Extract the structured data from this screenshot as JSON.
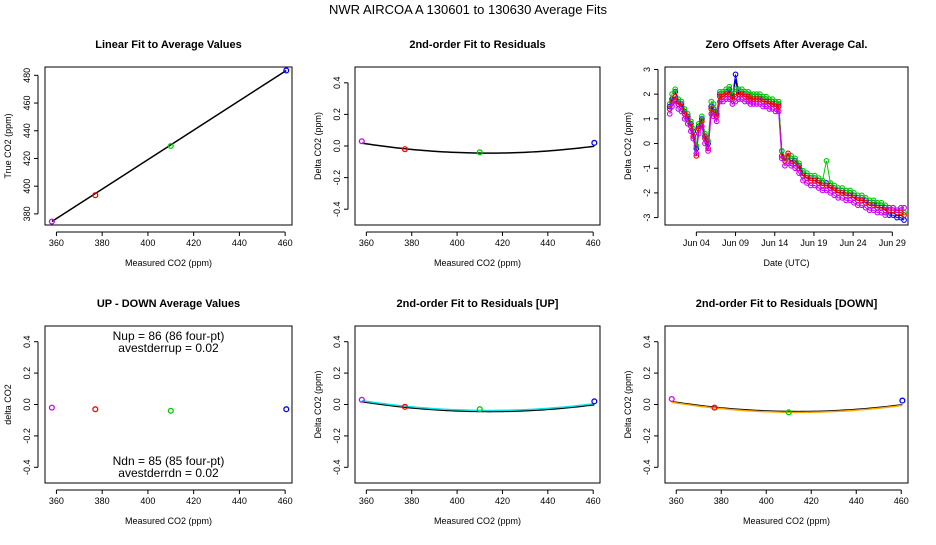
{
  "figure": {
    "title": "NWR   AIRCOA A   130601 to 130630   Average Fits"
  },
  "colors": {
    "purple": "#cc00ff",
    "red": "#ff0000",
    "green": "#00cc00",
    "blue": "#0000ff",
    "black": "#000000",
    "cyan": "#00e5e5",
    "orange": "#ffa500"
  },
  "chart_data": [
    {
      "type": "scatter",
      "title": "Linear Fit to Average Values",
      "xlabel": "Measured CO2 (ppm)",
      "ylabel": "True CO2 (ppm)",
      "xlim": [
        355,
        463
      ],
      "ylim": [
        372,
        486
      ],
      "xticks": [
        "360",
        "380",
        "400",
        "420",
        "440",
        "460"
      ],
      "yticks": [
        "380",
        "400",
        "420",
        "440",
        "460",
        "480"
      ],
      "points": [
        {
          "x": 358,
          "y": 374.5,
          "color": "purple"
        },
        {
          "x": 377,
          "y": 393.5,
          "color": "red"
        },
        {
          "x": 410,
          "y": 429,
          "color": "green"
        },
        {
          "x": 460.5,
          "y": 483.5,
          "color": "blue"
        }
      ],
      "lines": [
        {
          "x": [
            358,
            460.5
          ],
          "y": [
            374.5,
            483.5
          ],
          "color": "black"
        }
      ]
    },
    {
      "type": "scatter",
      "title": "2nd-order Fit to Residuals",
      "xlabel": "Measured CO2 (ppm)",
      "ylabel": "Delta CO2 (ppm)",
      "xlim": [
        355,
        463
      ],
      "ylim": [
        -0.5,
        0.5
      ],
      "xticks": [
        "360",
        "380",
        "400",
        "420",
        "440",
        "460"
      ],
      "yticks": [
        "-0.4",
        "-0.2",
        "0.0",
        "0.2",
        "0.4"
      ],
      "points": [
        {
          "x": 358,
          "y": 0.03,
          "color": "purple"
        },
        {
          "x": 377,
          "y": -0.02,
          "color": "red"
        },
        {
          "x": 410,
          "y": -0.04,
          "color": "green"
        },
        {
          "x": 460.5,
          "y": 0.02,
          "color": "blue"
        }
      ],
      "curves": [
        {
          "a": 2.02e-05,
          "x0": 414,
          "c": -0.045,
          "from": 358,
          "to": 460.5,
          "color": "black"
        }
      ]
    },
    {
      "type": "line",
      "title": "Zero Offsets After Average Cal.",
      "xlabel": "Date (UTC)",
      "ylabel": "Delta CO2 (ppm)",
      "xlim": [
        0,
        31
      ],
      "ylim": [
        -3.3,
        3.1
      ],
      "xtick_values": [
        4,
        9,
        14,
        19,
        24,
        29
      ],
      "xticks": [
        "Jun 04",
        "Jun 09",
        "Jun 14",
        "Jun 19",
        "Jun 24",
        "Jun 29"
      ],
      "yticks": [
        "-3",
        "-2",
        "-1",
        "0",
        "1",
        "2",
        "3"
      ],
      "series_x": [
        0.6,
        0.9,
        1.3,
        1.7,
        2.1,
        2.5,
        2.9,
        3.3,
        3.6,
        4.0,
        4.3,
        4.7,
        5.1,
        5.5,
        5.9,
        6.2,
        6.6,
        7.0,
        7.4,
        7.8,
        8.2,
        8.6,
        9.0,
        9.4,
        9.8,
        10.2,
        10.6,
        10.9,
        11.3,
        11.7,
        12.1,
        12.5,
        12.9,
        13.3,
        13.7,
        14.1,
        14.5,
        14.9,
        15.3,
        15.7,
        16.1,
        16.6,
        17.1,
        17.6,
        18.1,
        18.6,
        19.1,
        19.6,
        20.1,
        20.6,
        21.1,
        21.6,
        22.1,
        22.6,
        23.1,
        23.6,
        24.1,
        24.6,
        25.1,
        25.6,
        26.1,
        26.6,
        27.1,
        27.6,
        28.1,
        28.6,
        29.1,
        29.6,
        30.1,
        30.5
      ],
      "series": [
        {
          "name": "black",
          "color": "black",
          "values": [
            1.4,
            1.7,
            1.9,
            1.6,
            1.5,
            1.2,
            1.0,
            0.7,
            0.4,
            -0.3,
            0.6,
            0.9,
            0.2,
            -0.1,
            1.4,
            1.3,
            1.1,
            1.9,
            1.9,
            2.0,
            2.1,
            1.8,
            2.6,
            2.0,
            2.0,
            1.9,
            1.9,
            1.8,
            1.8,
            1.8,
            1.8,
            1.7,
            1.7,
            1.6,
            1.6,
            1.5,
            1.5,
            -0.4,
            -0.7,
            -0.6,
            -0.7,
            -0.8,
            -1.0,
            -1.3,
            -1.4,
            -1.5,
            -1.5,
            -1.6,
            -1.7,
            -1.7,
            -1.8,
            -1.9,
            -2.0,
            -2.0,
            -2.1,
            -2.1,
            -2.2,
            -2.3,
            -2.3,
            -2.4,
            -2.5,
            -2.5,
            -2.6,
            -2.6,
            -2.7,
            -2.8,
            -2.8,
            -2.9,
            -2.9,
            -3.0
          ]
        },
        {
          "name": "blue",
          "color": "blue",
          "values": [
            1.5,
            1.8,
            2.1,
            1.7,
            1.6,
            1.3,
            1.1,
            0.8,
            0.5,
            -0.2,
            0.7,
            1.0,
            0.3,
            0.0,
            1.5,
            1.4,
            1.2,
            2.0,
            2.0,
            2.1,
            2.2,
            1.9,
            2.8,
            2.1,
            2.1,
            2.0,
            2.0,
            1.9,
            1.9,
            1.9,
            1.9,
            1.8,
            1.8,
            1.7,
            1.7,
            1.6,
            1.6,
            -0.3,
            -0.6,
            -0.5,
            -0.6,
            -0.7,
            -0.9,
            -1.2,
            -1.3,
            -1.4,
            -1.4,
            -1.5,
            -1.6,
            -1.6,
            -1.7,
            -1.8,
            -1.9,
            -1.9,
            -2.0,
            -2.0,
            -2.1,
            -2.2,
            -2.2,
            -2.3,
            -2.4,
            -2.4,
            -2.5,
            -2.5,
            -2.6,
            -2.9,
            -2.9,
            -3.0,
            -3.0,
            -3.1
          ]
        },
        {
          "name": "green",
          "color": "green",
          "values": [
            1.6,
            2.0,
            2.2,
            1.8,
            1.7,
            1.4,
            1.2,
            0.9,
            0.6,
            -0.1,
            0.8,
            1.1,
            0.4,
            0.1,
            1.7,
            1.6,
            1.3,
            2.1,
            2.1,
            2.2,
            2.3,
            2.0,
            2.2,
            2.2,
            2.2,
            2.1,
            2.1,
            2.0,
            2.0,
            2.0,
            2.0,
            1.9,
            1.9,
            1.8,
            1.8,
            1.7,
            1.7,
            -0.3,
            -0.6,
            -0.5,
            -0.5,
            -0.6,
            -0.8,
            -1.1,
            -1.2,
            -1.3,
            -1.3,
            -1.4,
            -1.5,
            -0.7,
            -1.6,
            -1.7,
            -1.8,
            -1.8,
            -1.9,
            -1.9,
            -2.0,
            -2.1,
            -2.1,
            -2.2,
            -2.3,
            -2.3,
            -2.4,
            -2.4,
            -2.5,
            -2.6,
            -2.6,
            -2.7,
            -2.7,
            -2.8
          ]
        },
        {
          "name": "red",
          "color": "red",
          "values": [
            1.4,
            1.7,
            1.9,
            1.6,
            1.5,
            1.2,
            1.0,
            0.7,
            0.3,
            -0.5,
            0.6,
            0.9,
            0.2,
            -0.2,
            1.4,
            1.3,
            1.1,
            1.9,
            1.9,
            2.0,
            2.0,
            1.8,
            1.9,
            2.0,
            2.0,
            1.9,
            1.9,
            1.8,
            1.8,
            1.8,
            1.8,
            1.7,
            1.7,
            1.6,
            1.6,
            1.5,
            1.5,
            -0.5,
            -0.7,
            -0.4,
            -0.8,
            -0.8,
            -1.0,
            -1.3,
            -1.4,
            -1.5,
            -1.5,
            -1.6,
            -1.7,
            -1.7,
            -1.8,
            -1.9,
            -2.0,
            -2.0,
            -2.1,
            -2.1,
            -2.2,
            -2.3,
            -2.3,
            -2.4,
            -2.5,
            -2.5,
            -2.6,
            -2.6,
            -2.7,
            -2.7,
            -2.7,
            -2.8,
            -2.8,
            -2.9
          ]
        },
        {
          "name": "purple",
          "color": "purple",
          "values": [
            1.2,
            1.5,
            1.7,
            1.4,
            1.3,
            1.0,
            0.8,
            0.5,
            0.2,
            -0.4,
            0.4,
            0.7,
            0.0,
            -0.3,
            1.2,
            1.1,
            0.9,
            1.7,
            1.7,
            1.8,
            1.8,
            1.6,
            1.7,
            1.8,
            1.8,
            1.7,
            1.7,
            1.6,
            1.6,
            1.6,
            1.6,
            1.5,
            1.5,
            1.4,
            1.4,
            1.3,
            1.3,
            -0.6,
            -0.9,
            -0.8,
            -0.9,
            -1.0,
            -1.2,
            -1.5,
            -1.6,
            -1.7,
            -1.7,
            -1.8,
            -1.9,
            -1.9,
            -2.0,
            -2.1,
            -2.2,
            -2.2,
            -2.3,
            -2.3,
            -2.4,
            -2.5,
            -2.5,
            -2.6,
            -2.7,
            -2.7,
            -2.8,
            -2.8,
            -2.9,
            -2.6,
            -2.6,
            -2.7,
            -2.6,
            -2.6
          ]
        }
      ]
    },
    {
      "type": "scatter",
      "title": "UP - DOWN Average Values",
      "xlabel": "Measured CO2 (ppm)",
      "ylabel": "delta CO2",
      "xlim": [
        355,
        463
      ],
      "ylim": [
        -0.5,
        0.5
      ],
      "xticks": [
        "360",
        "380",
        "400",
        "420",
        "440",
        "460"
      ],
      "yticks": [
        "-0.4",
        "-0.2",
        "0.0",
        "0.2",
        "0.4"
      ],
      "points": [
        {
          "x": 358,
          "y": -0.02,
          "color": "purple"
        },
        {
          "x": 377,
          "y": -0.03,
          "color": "red"
        },
        {
          "x": 410,
          "y": -0.04,
          "color": "green"
        },
        {
          "x": 460.5,
          "y": -0.03,
          "color": "blue"
        }
      ],
      "annotations": {
        "nup": "Nup = 86 (86 four-pt)",
        "avestderrup": "avestderrup =  0.02",
        "ndn": "Ndn = 85 (85 four-pt)",
        "avestderrdn": "avestderrdn =  0.02"
      }
    },
    {
      "type": "scatter",
      "title": "2nd-order Fit to Residuals [UP]",
      "xlabel": "Measured CO2 (ppm)",
      "ylabel": "Delta CO2 (ppm)",
      "xlim": [
        355,
        463
      ],
      "ylim": [
        -0.5,
        0.5
      ],
      "xticks": [
        "360",
        "380",
        "400",
        "420",
        "440",
        "460"
      ],
      "yticks": [
        "-0.4",
        "-0.2",
        "0.0",
        "0.2",
        "0.4"
      ],
      "points": [
        {
          "x": 358,
          "y": 0.03,
          "color": "purple"
        },
        {
          "x": 377,
          "y": -0.015,
          "color": "red"
        },
        {
          "x": 410,
          "y": -0.03,
          "color": "green"
        },
        {
          "x": 460.5,
          "y": 0.02,
          "color": "blue"
        }
      ],
      "curves": [
        {
          "a": 2.02e-05,
          "x0": 414,
          "c": -0.045,
          "from": 358,
          "to": 460.5,
          "color": "black"
        },
        {
          "a": 2e-05,
          "x0": 414,
          "c": -0.038,
          "from": 358,
          "to": 460.5,
          "color": "cyan"
        }
      ]
    },
    {
      "type": "scatter",
      "title": "2nd-order Fit to Residuals [DOWN]",
      "xlabel": "Measured CO2 (ppm)",
      "ylabel": "Delta CO2 (ppm)",
      "xlim": [
        355,
        463
      ],
      "ylim": [
        -0.5,
        0.5
      ],
      "xticks": [
        "360",
        "380",
        "400",
        "420",
        "440",
        "460"
      ],
      "yticks": [
        "-0.4",
        "-0.2",
        "0.0",
        "0.2",
        "0.4"
      ],
      "points": [
        {
          "x": 358,
          "y": 0.035,
          "color": "purple"
        },
        {
          "x": 377,
          "y": -0.02,
          "color": "red"
        },
        {
          "x": 410,
          "y": -0.05,
          "color": "green"
        },
        {
          "x": 460.5,
          "y": 0.025,
          "color": "blue"
        }
      ],
      "curves": [
        {
          "a": 2.02e-05,
          "x0": 414,
          "c": -0.045,
          "from": 358,
          "to": 460.5,
          "color": "black"
        },
        {
          "a": 2.05e-05,
          "x0": 414,
          "c": -0.05,
          "from": 358,
          "to": 460.5,
          "color": "orange"
        }
      ]
    }
  ]
}
